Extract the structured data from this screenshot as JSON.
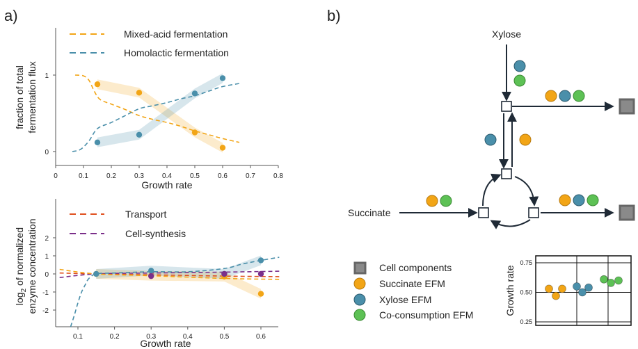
{
  "colors": {
    "orange": "#F2A516",
    "blue": "#4A8FAA",
    "green": "#5DC155",
    "red": "#E0501E",
    "purple": "#7B2F8A",
    "gray_box": "#8A8A8A",
    "dark": "#1F2A36"
  },
  "panel_a": {
    "label": "a)",
    "chart_data": [
      {
        "type": "line",
        "title": "",
        "xlabel": "Growth rate",
        "ylabel_line1": "fraction of total",
        "ylabel_line2": "fermentation flux",
        "xlim": [
          0,
          0.8
        ],
        "ylim": [
          -0.2,
          1.55
        ],
        "x_ticks": [
          "0",
          "0.1",
          "0.2",
          "0.3",
          "0.4",
          "0.5",
          "0.6",
          "0.7",
          "0.8"
        ],
        "y_ticks": [
          "0",
          "1"
        ],
        "legend": [
          "Mixed-acid fermentation",
          "Homolactic fermentation"
        ],
        "series": [
          {
            "name": "Mixed-acid fermentation",
            "color": "#F2A516",
            "curve_x": [
              0.07,
              0.1,
              0.12,
              0.14,
              0.16,
              0.2,
              0.25,
              0.3,
              0.35,
              0.4,
              0.45,
              0.5,
              0.55,
              0.6,
              0.66
            ],
            "curve_y": [
              1.0,
              0.99,
              0.93,
              0.78,
              0.68,
              0.62,
              0.55,
              0.47,
              0.42,
              0.38,
              0.33,
              0.27,
              0.22,
              0.17,
              0.12
            ],
            "points_x": [
              0.15,
              0.3,
              0.5,
              0.6
            ],
            "points_y": [
              0.88,
              0.77,
              0.25,
              0.05
            ]
          },
          {
            "name": "Homolactic fermentation",
            "color": "#4A8FAA",
            "curve_x": [
              0.06,
              0.09,
              0.12,
              0.15,
              0.2,
              0.25,
              0.3,
              0.35,
              0.4,
              0.45,
              0.5,
              0.55,
              0.6,
              0.66
            ],
            "curve_y": [
              0.0,
              0.03,
              0.14,
              0.3,
              0.38,
              0.47,
              0.56,
              0.6,
              0.64,
              0.69,
              0.73,
              0.79,
              0.85,
              0.89
            ],
            "points_x": [
              0.15,
              0.3,
              0.5,
              0.6
            ],
            "points_y": [
              0.12,
              0.22,
              0.76,
              0.96
            ]
          }
        ]
      },
      {
        "type": "line",
        "title": "",
        "xlabel": "Growth rate",
        "ylabel_line1": "log",
        "ylabel_sub": "2",
        "ylabel_line1_rest": " of normalized",
        "ylabel_line2": "enzyme concentration",
        "xlim": [
          0.05,
          0.65
        ],
        "ylim": [
          -3.0,
          3.5
        ],
        "x_ticks": [
          "0.1",
          "0.2",
          "0.3",
          "0.4",
          "0.5",
          "0.6"
        ],
        "y_ticks": [
          "2",
          "1",
          "0",
          "-1",
          "-2"
        ],
        "legend": [
          "Transport",
          "Cell-synthesis"
        ],
        "series": [
          {
            "name": "Transport",
            "color": "#E0501E",
            "curve_x": [
              0.05,
              0.15,
              0.3,
              0.5,
              0.65
            ],
            "curve_y": [
              0.05,
              0.0,
              -0.05,
              -0.12,
              -0.15
            ]
          },
          {
            "name": "Cell-synthesis",
            "color": "#7B2F8A",
            "curve_x": [
              0.05,
              0.15,
              0.3,
              0.5,
              0.65
            ],
            "curve_y": [
              -0.2,
              0.0,
              0.05,
              0.1,
              0.15
            ]
          },
          {
            "name": "",
            "color": "#F2A516",
            "curve_x": [
              0.05,
              0.15,
              0.3,
              0.5,
              0.65
            ],
            "curve_y": [
              0.25,
              0.0,
              -0.1,
              -0.25,
              -0.3
            ],
            "points_x": [
              0.15,
              0.3,
              0.5,
              0.6
            ],
            "points_y": [
              0.0,
              -0.1,
              -0.15,
              -1.1
            ]
          },
          {
            "name": "",
            "color": "#4A8FAA",
            "curve_x": [
              0.08,
              0.09,
              0.1,
              0.11,
              0.12,
              0.13,
              0.15,
              0.2,
              0.3,
              0.4,
              0.5,
              0.55,
              0.6,
              0.65
            ],
            "curve_y": [
              -3.0,
              -2.3,
              -1.6,
              -1.0,
              -0.6,
              -0.25,
              0.0,
              0.05,
              0.12,
              0.12,
              0.3,
              0.55,
              0.75,
              0.92
            ],
            "points_x": [
              0.15,
              0.3,
              0.5,
              0.6
            ],
            "points_y": [
              0.0,
              0.18,
              0.0,
              0.75
            ]
          },
          {
            "name": "",
            "color": "#7B2F8A",
            "points_x": [
              0.3,
              0.5,
              0.6
            ],
            "points_y": [
              -0.12,
              0.0,
              0.0
            ]
          }
        ]
      }
    ]
  },
  "panel_b": {
    "label": "b)",
    "xylose_label": "Xylose",
    "succinate_label": "Succinate",
    "legend": [
      {
        "label": "Cell components",
        "icon": "gray-square"
      },
      {
        "label": "Succinate EFM",
        "icon": "orange-circle"
      },
      {
        "label": "Xylose EFM",
        "icon": "blue-circle"
      },
      {
        "label": "Co-consumption EFM",
        "icon": "green-circle"
      }
    ],
    "chart_data": {
      "type": "scatter",
      "title": "",
      "ylabel": "Growth rate",
      "xlabel": "",
      "ylim": [
        0.22,
        0.8
      ],
      "y_ticks": [
        "0.75",
        "0.50",
        "0.25"
      ],
      "series": [
        {
          "name": "Succinate EFM",
          "color": "#F2A516",
          "x": [
            1,
            2,
            3
          ],
          "y": [
            0.53,
            0.47,
            0.53
          ]
        },
        {
          "name": "Xylose EFM",
          "color": "#4A8FAA",
          "x": [
            4,
            5,
            6
          ],
          "y": [
            0.55,
            0.5,
            0.54
          ]
        },
        {
          "name": "Co-consumption EFM",
          "color": "#5DC155",
          "x": [
            7,
            8,
            9
          ],
          "y": [
            0.61,
            0.58,
            0.6
          ]
        }
      ]
    }
  }
}
